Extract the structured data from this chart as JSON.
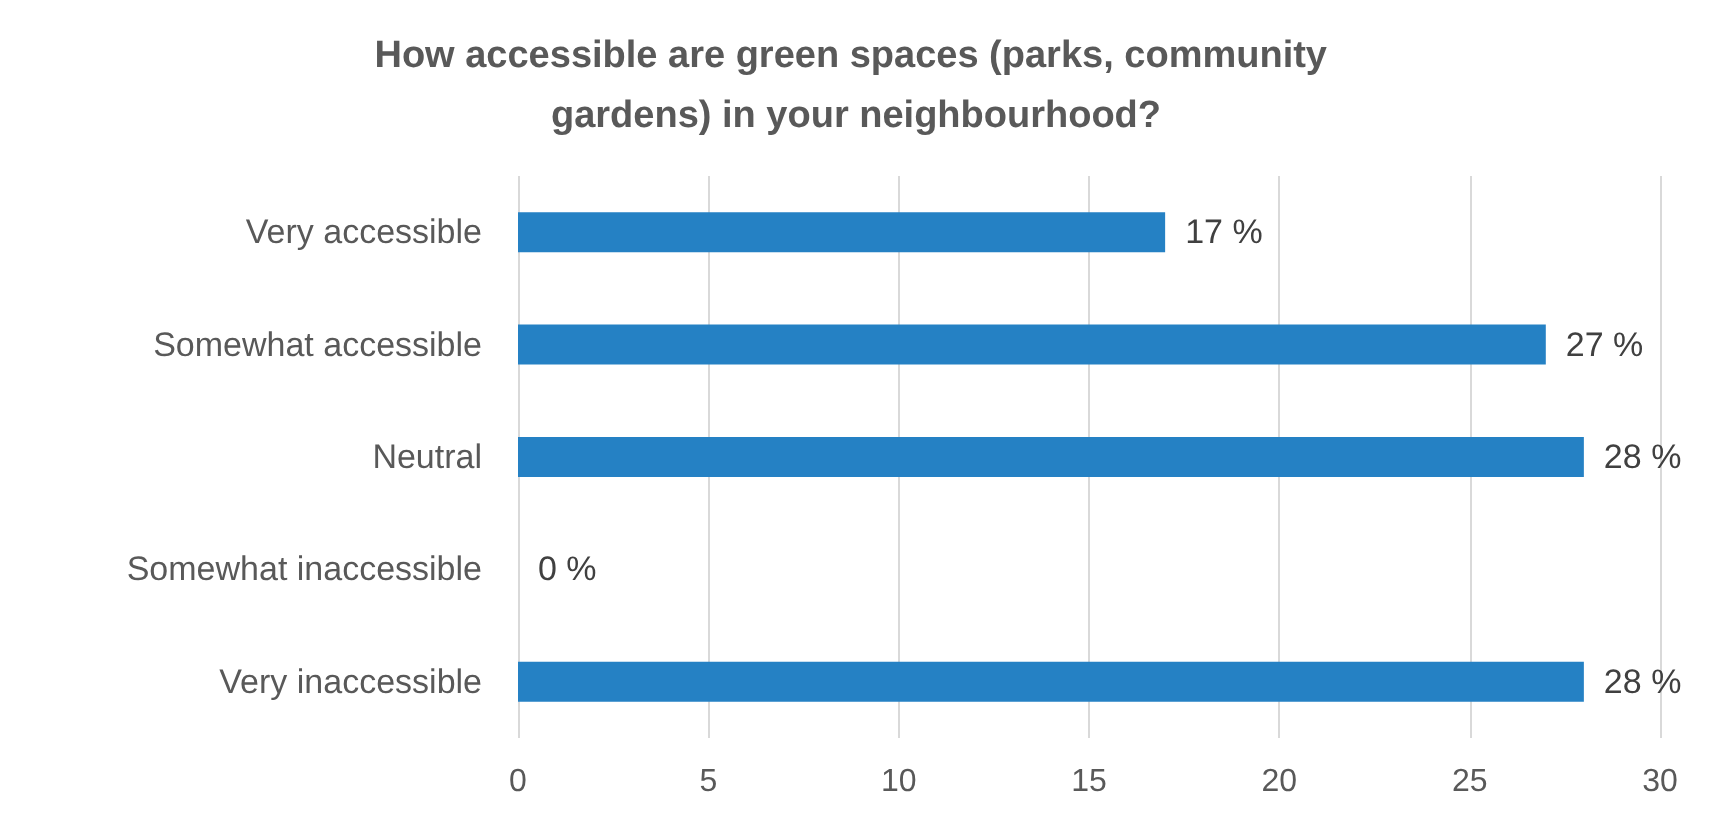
{
  "chart_data": {
    "type": "bar",
    "orientation": "horizontal",
    "title": "How accessible are green spaces (parks, community gardens) in your neighbourhood?",
    "categories": [
      "Very accessible",
      "Somewhat accessible",
      "Neutral",
      "Somewhat inaccessible",
      "Very inaccessible"
    ],
    "values": [
      17,
      27,
      28,
      0,
      28
    ],
    "value_labels": [
      "17 %",
      "27 %",
      "28 %",
      "0 %",
      "28 %"
    ],
    "color": "#2581c4",
    "xlim": [
      0,
      30
    ],
    "xticks": [
      0,
      5,
      10,
      15,
      20,
      25,
      30
    ],
    "grid": "x"
  }
}
